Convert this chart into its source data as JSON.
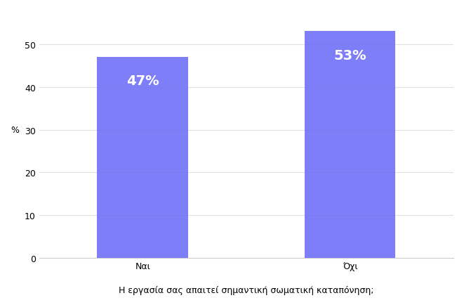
{
  "categories": [
    "Ναι",
    "Όχι"
  ],
  "values": [
    47,
    53
  ],
  "bar_color": "#6868f7",
  "bar_alpha": 0.85,
  "label_color": "#ffffff",
  "label_fontsize": 14,
  "ylabel": "%",
  "xlabel": "Η εργασία σας απαιτεί σημαντική σωματική καταπόνηση;",
  "ylim": [
    0,
    58
  ],
  "yticks": [
    0,
    10,
    20,
    30,
    40,
    50
  ],
  "grid_color": "#e0e0e0",
  "background_color": "#ffffff",
  "bar_width": 0.22,
  "tick_fontsize": 9,
  "xlabel_fontsize": 9,
  "x_positions": [
    0.25,
    0.75
  ]
}
